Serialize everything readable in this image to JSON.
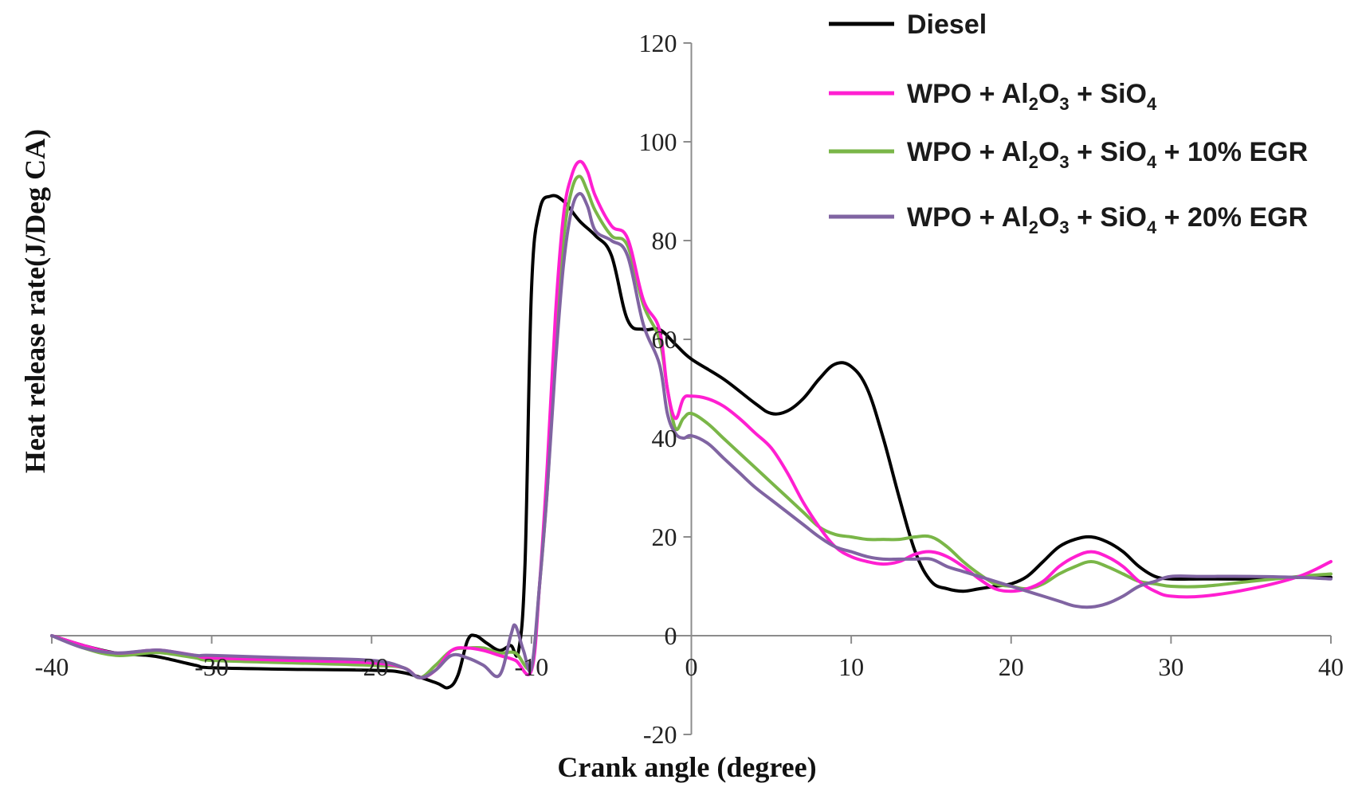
{
  "chart_data": {
    "type": "line",
    "title": "",
    "xlabel": "Crank angle (degree)",
    "ylabel": "Heat release rate(J/Deg CA)",
    "xlim": [
      -40,
      40
    ],
    "ylim": [
      -20,
      120
    ],
    "x_ticks": [
      "-40",
      "-30",
      "-20",
      "-10",
      "0",
      "10",
      "20",
      "30",
      "40"
    ],
    "y_ticks": [
      "-20",
      "0",
      "20",
      "40",
      "60",
      "80",
      "100",
      "120"
    ],
    "x_tick_values": [
      -40,
      -30,
      -20,
      -10,
      0,
      10,
      20,
      30,
      40
    ],
    "y_tick_values": [
      -20,
      0,
      20,
      40,
      60,
      80,
      100,
      120
    ],
    "grid": false,
    "legend_position": "top-right",
    "series": [
      {
        "name": "Diesel",
        "legend": {
          "prefix": "Diesel",
          "has_formula": false,
          "egr": ""
        },
        "color": "#000000",
        "points": [
          [
            -40,
            0
          ],
          [
            -38,
            -2
          ],
          [
            -36,
            -3.5
          ],
          [
            -34,
            -4
          ],
          [
            -33,
            -4.5
          ],
          [
            -31,
            -6
          ],
          [
            -30,
            -6.5
          ],
          [
            -25,
            -6.8
          ],
          [
            -20,
            -7
          ],
          [
            -18,
            -7.5
          ],
          [
            -16,
            -9.5
          ],
          [
            -15.2,
            -10.5
          ],
          [
            -14.6,
            -8
          ],
          [
            -14,
            -1
          ],
          [
            -13.5,
            0
          ],
          [
            -12.8,
            -1.5
          ],
          [
            -12,
            -3
          ],
          [
            -11.3,
            -2
          ],
          [
            -10.8,
            -3
          ],
          [
            -10.4,
            15
          ],
          [
            -10,
            70
          ],
          [
            -9.5,
            86
          ],
          [
            -8.8,
            89
          ],
          [
            -8,
            88
          ],
          [
            -7,
            84
          ],
          [
            -6,
            81
          ],
          [
            -5,
            77
          ],
          [
            -4,
            64
          ],
          [
            -3,
            62
          ],
          [
            -2,
            62
          ],
          [
            -1,
            59
          ],
          [
            0,
            56
          ],
          [
            2,
            52
          ],
          [
            4,
            47
          ],
          [
            5,
            45
          ],
          [
            6,
            45.5
          ],
          [
            7,
            48
          ],
          [
            8,
            52
          ],
          [
            9,
            55
          ],
          [
            10,
            54.5
          ],
          [
            11,
            50
          ],
          [
            12,
            40
          ],
          [
            13,
            28
          ],
          [
            14,
            17
          ],
          [
            15,
            11
          ],
          [
            16,
            9.5
          ],
          [
            17,
            9
          ],
          [
            18,
            9.5
          ],
          [
            19,
            10
          ],
          [
            20,
            10.5
          ],
          [
            21,
            12
          ],
          [
            22,
            15
          ],
          [
            23,
            18
          ],
          [
            24,
            19.5
          ],
          [
            25,
            20
          ],
          [
            26,
            19
          ],
          [
            27,
            17
          ],
          [
            28,
            14
          ],
          [
            29,
            12
          ],
          [
            30,
            11.5
          ],
          [
            32,
            11.5
          ],
          [
            35,
            11.5
          ],
          [
            38,
            11.8
          ],
          [
            40,
            11.8
          ]
        ]
      },
      {
        "name": "WPO + Al2O3 + SiO4",
        "legend": {
          "prefix": "WPO + Al",
          "has_formula": true,
          "egr": ""
        },
        "color": "#ff1fd1",
        "points": [
          [
            -40,
            0
          ],
          [
            -38,
            -2
          ],
          [
            -36,
            -3.5
          ],
          [
            -34,
            -3
          ],
          [
            -33,
            -3
          ],
          [
            -31,
            -4
          ],
          [
            -30,
            -4.5
          ],
          [
            -25,
            -5
          ],
          [
            -20,
            -5.5
          ],
          [
            -18,
            -6.5
          ],
          [
            -17,
            -8.5
          ],
          [
            -16,
            -7
          ],
          [
            -15,
            -3
          ],
          [
            -14,
            -2.5
          ],
          [
            -13,
            -3
          ],
          [
            -12,
            -4
          ],
          [
            -11,
            -5
          ],
          [
            -10,
            -7
          ],
          [
            -9.5,
            10
          ],
          [
            -9,
            35
          ],
          [
            -8.5,
            65
          ],
          [
            -8,
            85
          ],
          [
            -7.5,
            93
          ],
          [
            -7,
            96
          ],
          [
            -6.5,
            94
          ],
          [
            -6,
            89
          ],
          [
            -5,
            83
          ],
          [
            -4,
            80.5
          ],
          [
            -3,
            68
          ],
          [
            -2,
            62
          ],
          [
            -1.5,
            50
          ],
          [
            -1,
            44
          ],
          [
            -0.5,
            48
          ],
          [
            0,
            48.5
          ],
          [
            1,
            48
          ],
          [
            2,
            46.5
          ],
          [
            3,
            44
          ],
          [
            4,
            41
          ],
          [
            5,
            38
          ],
          [
            6,
            33
          ],
          [
            7,
            27
          ],
          [
            8,
            22
          ],
          [
            9,
            18
          ],
          [
            10,
            16
          ],
          [
            11,
            15
          ],
          [
            12,
            14.5
          ],
          [
            13,
            15
          ],
          [
            14,
            16.5
          ],
          [
            15,
            17
          ],
          [
            16,
            16
          ],
          [
            17,
            14
          ],
          [
            18,
            11.5
          ],
          [
            19,
            9.5
          ],
          [
            20,
            9
          ],
          [
            21,
            9.5
          ],
          [
            22,
            11
          ],
          [
            23,
            14
          ],
          [
            24,
            16
          ],
          [
            25,
            17
          ],
          [
            26,
            16
          ],
          [
            27,
            14
          ],
          [
            28,
            11
          ],
          [
            29,
            9
          ],
          [
            30,
            8
          ],
          [
            32,
            8
          ],
          [
            35,
            9.5
          ],
          [
            38,
            12
          ],
          [
            40,
            15
          ]
        ]
      },
      {
        "name": "WPO + Al2O3 + SiO4 + 10% EGR",
        "legend": {
          "prefix": "WPO + Al",
          "has_formula": true,
          "egr": " + 10% EGR"
        },
        "color": "#7ab648",
        "points": [
          [
            -40,
            0
          ],
          [
            -38,
            -2.5
          ],
          [
            -36,
            -4
          ],
          [
            -34,
            -3.5
          ],
          [
            -33,
            -3.5
          ],
          [
            -31,
            -4.5
          ],
          [
            -30,
            -5
          ],
          [
            -25,
            -5.5
          ],
          [
            -20,
            -6
          ],
          [
            -18,
            -6.5
          ],
          [
            -17,
            -8.5
          ],
          [
            -16,
            -6
          ],
          [
            -15,
            -3
          ],
          [
            -14,
            -2.5
          ],
          [
            -13,
            -2.5
          ],
          [
            -12,
            -3.5
          ],
          [
            -11,
            -3.5
          ],
          [
            -10,
            -6
          ],
          [
            -9.5,
            10
          ],
          [
            -9,
            30
          ],
          [
            -8.5,
            58
          ],
          [
            -8,
            80
          ],
          [
            -7.5,
            90
          ],
          [
            -7,
            93
          ],
          [
            -6.5,
            90
          ],
          [
            -6,
            86
          ],
          [
            -5,
            81
          ],
          [
            -4,
            79
          ],
          [
            -3,
            67
          ],
          [
            -2,
            60
          ],
          [
            -1.5,
            50
          ],
          [
            -1,
            42
          ],
          [
            -0.5,
            44
          ],
          [
            0,
            45
          ],
          [
            1,
            43
          ],
          [
            2,
            40
          ],
          [
            3,
            37
          ],
          [
            4,
            34
          ],
          [
            5,
            31
          ],
          [
            6,
            28
          ],
          [
            7,
            25
          ],
          [
            8,
            22
          ],
          [
            9,
            20.5
          ],
          [
            10,
            20
          ],
          [
            11,
            19.5
          ],
          [
            12,
            19.5
          ],
          [
            13,
            19.5
          ],
          [
            14,
            20
          ],
          [
            15,
            20
          ],
          [
            16,
            18
          ],
          [
            17,
            15
          ],
          [
            18,
            12.5
          ],
          [
            19,
            10.5
          ],
          [
            20,
            10
          ],
          [
            21,
            9.5
          ],
          [
            22,
            10.5
          ],
          [
            23,
            12.5
          ],
          [
            24,
            14
          ],
          [
            25,
            15
          ],
          [
            26,
            14
          ],
          [
            27,
            12.5
          ],
          [
            28,
            11
          ],
          [
            29,
            10.5
          ],
          [
            30,
            10
          ],
          [
            32,
            10
          ],
          [
            35,
            11
          ],
          [
            38,
            12
          ],
          [
            40,
            12.5
          ]
        ]
      },
      {
        "name": "WPO + Al2O3 + SiO4 + 20% EGR",
        "legend": {
          "prefix": "WPO + Al",
          "has_formula": true,
          "egr": " + 20% EGR"
        },
        "color": "#8064a2",
        "points": [
          [
            -40,
            0
          ],
          [
            -38,
            -2.5
          ],
          [
            -36,
            -3.5
          ],
          [
            -34,
            -3
          ],
          [
            -33,
            -3
          ],
          [
            -31,
            -4
          ],
          [
            -30,
            -4
          ],
          [
            -25,
            -4.5
          ],
          [
            -20,
            -5
          ],
          [
            -18,
            -6.5
          ],
          [
            -17,
            -8.5
          ],
          [
            -16,
            -7
          ],
          [
            -15,
            -4
          ],
          [
            -14,
            -4.5
          ],
          [
            -13,
            -6
          ],
          [
            -12,
            -8
          ],
          [
            -11.3,
            0
          ],
          [
            -11,
            2
          ],
          [
            -10.5,
            -3
          ],
          [
            -10,
            -6.5
          ],
          [
            -9.5,
            10
          ],
          [
            -9,
            30
          ],
          [
            -8.5,
            55
          ],
          [
            -8,
            75
          ],
          [
            -7.5,
            86
          ],
          [
            -7,
            89.5
          ],
          [
            -6.5,
            87
          ],
          [
            -6,
            82
          ],
          [
            -5,
            80
          ],
          [
            -4,
            77
          ],
          [
            -3,
            63
          ],
          [
            -2,
            55
          ],
          [
            -1.5,
            45
          ],
          [
            -1,
            41
          ],
          [
            -0.5,
            40
          ],
          [
            0,
            40.5
          ],
          [
            1,
            39
          ],
          [
            2,
            36
          ],
          [
            3,
            33
          ],
          [
            4,
            30
          ],
          [
            5,
            27.5
          ],
          [
            6,
            25
          ],
          [
            7,
            22.5
          ],
          [
            8,
            20
          ],
          [
            9,
            18
          ],
          [
            10,
            17
          ],
          [
            11,
            16
          ],
          [
            12,
            15.5
          ],
          [
            13,
            15.5
          ],
          [
            14,
            15.5
          ],
          [
            15,
            15.5
          ],
          [
            16,
            14
          ],
          [
            17,
            13
          ],
          [
            18,
            12
          ],
          [
            19,
            11
          ],
          [
            20,
            10
          ],
          [
            21,
            9
          ],
          [
            22,
            8
          ],
          [
            23,
            7
          ],
          [
            24,
            6
          ],
          [
            25,
            5.8
          ],
          [
            26,
            6.5
          ],
          [
            27,
            8
          ],
          [
            28,
            10
          ],
          [
            29,
            11
          ],
          [
            30,
            12
          ],
          [
            32,
            12
          ],
          [
            35,
            12
          ],
          [
            38,
            11.8
          ],
          [
            40,
            11.5
          ]
        ]
      }
    ]
  }
}
